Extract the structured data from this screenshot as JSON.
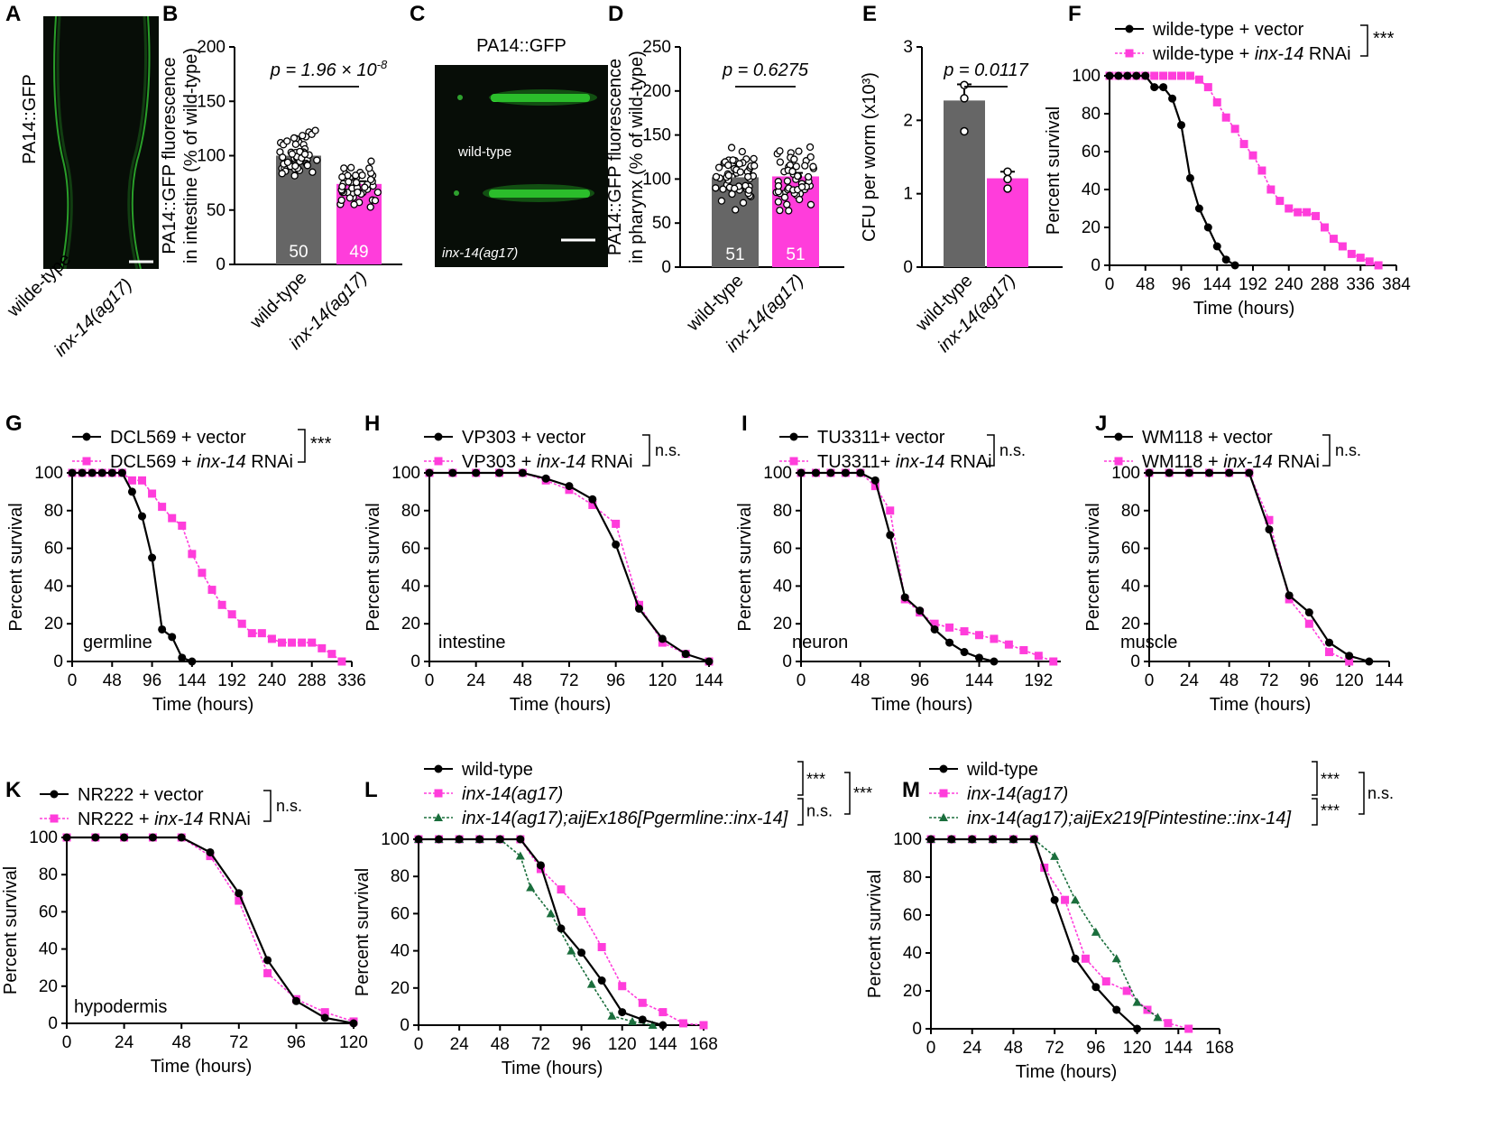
{
  "colors": {
    "black": "#000000",
    "pink": "#ff3ddb",
    "green": "#1a6e3c",
    "grey": "#666666"
  },
  "panels": {
    "A": {
      "label": "A",
      "ylabel": "PA14::GFP",
      "xcats": [
        "wilde-type",
        "inx-14(ag17)"
      ]
    },
    "C": {
      "label": "C",
      "title": "PA14::GFP",
      "img_labels": [
        "wild-type",
        "inx-14(ag17)"
      ]
    }
  },
  "chart_data": [
    {
      "id": "B",
      "type": "bar",
      "categories": [
        "wild-type",
        "inx-14(ag17)"
      ],
      "values": [
        100,
        74
      ],
      "sem": [
        3,
        2.5
      ],
      "n": [
        "50",
        "49"
      ],
      "ylabel_lines": [
        "PA14::GFP fluorescence",
        "in intestine (% of wild-type)"
      ],
      "ylim": [
        0,
        200
      ],
      "yticks": [
        0,
        50,
        100,
        150,
        200
      ],
      "annotation": "p = 1.96 × 10",
      "annotation_sup": "-8"
    },
    {
      "id": "D",
      "type": "bar",
      "categories": [
        "wild-type",
        "inx-14(ag17)"
      ],
      "values": [
        102,
        103
      ],
      "sem": [
        4,
        4
      ],
      "n": [
        "51",
        "51"
      ],
      "ylabel_lines": [
        "PA14::GFP fluorescence",
        "in pharynx (% of wild-type)"
      ],
      "ylim": [
        0,
        250
      ],
      "yticks": [
        0,
        50,
        100,
        150,
        200,
        250
      ],
      "annotation": "p = 0.6275"
    },
    {
      "id": "E",
      "type": "bar",
      "categories": [
        "wild-type",
        "inx-14(ag17)"
      ],
      "values": [
        2.27,
        1.21
      ],
      "sem": [
        0.22,
        0.09
      ],
      "points": [
        [
          2.48,
          2.3,
          1.85
        ],
        [
          1.3,
          1.2,
          1.07
        ]
      ],
      "ylabel": "CFU per worm (x10³)",
      "ylim": [
        0,
        3
      ],
      "yticks": [
        0,
        1,
        2,
        3
      ],
      "annotation": "p = 0.0117"
    },
    {
      "id": "F",
      "type": "line",
      "xlabel": "Time (hours)",
      "ylabel": "Percent survival",
      "xlim": [
        0,
        384
      ],
      "xticks": [
        0,
        48,
        96,
        144,
        192,
        240,
        288,
        336,
        384
      ],
      "ylim": [
        0,
        100
      ],
      "yticks": [
        0,
        20,
        40,
        60,
        80,
        100
      ],
      "series": [
        {
          "name": "wilde-type + vector",
          "style": "black",
          "x": [
            0,
            12,
            24,
            36,
            48,
            60,
            72,
            84,
            96,
            108,
            120,
            132,
            144,
            156,
            168
          ],
          "y": [
            100,
            100,
            100,
            100,
            100,
            94,
            94,
            88,
            74,
            46,
            30,
            20,
            10,
            3,
            0
          ]
        },
        {
          "name": "wilde-type + inx-14 RNAi",
          "style": "pink",
          "x": [
            0,
            12,
            24,
            36,
            48,
            60,
            72,
            84,
            96,
            108,
            120,
            132,
            144,
            156,
            168,
            180,
            192,
            204,
            216,
            228,
            240,
            252,
            264,
            276,
            288,
            300,
            312,
            324,
            336,
            348,
            360
          ],
          "y": [
            100,
            100,
            100,
            100,
            100,
            100,
            100,
            100,
            100,
            100,
            98,
            94,
            86,
            78,
            72,
            64,
            58,
            50,
            40,
            34,
            30,
            28,
            28,
            26,
            20,
            14,
            10,
            6,
            4,
            2,
            0
          ]
        }
      ],
      "stats": [
        {
          "text": "***"
        }
      ]
    },
    {
      "id": "G",
      "type": "line",
      "xlabel": "Time (hours)",
      "ylabel": "Percent survival",
      "tissue": "germline",
      "xlim": [
        0,
        336
      ],
      "xticks": [
        0,
        48,
        96,
        144,
        192,
        240,
        288,
        336
      ],
      "ylim": [
        0,
        100
      ],
      "yticks": [
        0,
        20,
        40,
        60,
        80,
        100
      ],
      "series": [
        {
          "name": "DCL569 + vector",
          "style": "black",
          "x": [
            0,
            12,
            24,
            36,
            48,
            60,
            72,
            84,
            96,
            108,
            120,
            132,
            144
          ],
          "y": [
            100,
            100,
            100,
            100,
            100,
            100,
            90,
            77,
            55,
            17,
            13,
            2,
            0
          ]
        },
        {
          "name": "DCL569 + inx-14 RNAi",
          "style": "pink",
          "x": [
            0,
            12,
            24,
            36,
            48,
            60,
            72,
            84,
            96,
            108,
            120,
            132,
            144,
            156,
            168,
            180,
            192,
            204,
            216,
            228,
            240,
            252,
            264,
            276,
            288,
            300,
            312,
            324
          ],
          "y": [
            100,
            100,
            100,
            100,
            100,
            100,
            96,
            96,
            89,
            82,
            76,
            72,
            57,
            47,
            38,
            30,
            25,
            20,
            15,
            15,
            12,
            10,
            10,
            10,
            10,
            7,
            4,
            0
          ]
        }
      ],
      "stats": [
        {
          "text": "***"
        }
      ]
    },
    {
      "id": "H",
      "type": "line",
      "xlabel": "Time (hours)",
      "ylabel": "Percent survival",
      "tissue": "intestine",
      "xlim": [
        0,
        144
      ],
      "xticks": [
        0,
        24,
        48,
        72,
        96,
        120,
        144
      ],
      "ylim": [
        0,
        100
      ],
      "yticks": [
        0,
        20,
        40,
        60,
        80,
        100
      ],
      "series": [
        {
          "name": "VP303 + vector",
          "style": "black",
          "x": [
            0,
            12,
            24,
            36,
            48,
            60,
            72,
            84,
            96,
            108,
            120,
            132,
            144
          ],
          "y": [
            100,
            100,
            100,
            100,
            100,
            97,
            93,
            86,
            62,
            28,
            12,
            4,
            0
          ]
        },
        {
          "name": "VP303 + inx-14 RNAi",
          "style": "pink",
          "x": [
            0,
            12,
            24,
            36,
            48,
            60,
            72,
            84,
            96,
            108,
            120,
            132,
            144
          ],
          "y": [
            100,
            100,
            100,
            100,
            100,
            96,
            91,
            83,
            73,
            30,
            10,
            4,
            0
          ]
        }
      ],
      "stats": [
        {
          "text": "n.s."
        }
      ]
    },
    {
      "id": "I",
      "type": "line",
      "xlabel": "Time (hours)",
      "ylabel": "Percent survival",
      "tissue": "neuron",
      "xlim": [
        0,
        210
      ],
      "xticks": [
        0,
        48,
        96,
        144,
        192
      ],
      "ylim": [
        0,
        100
      ],
      "yticks": [
        0,
        20,
        40,
        60,
        80,
        100
      ],
      "series": [
        {
          "name": "TU3311+ vector",
          "style": "black",
          "x": [
            0,
            12,
            24,
            36,
            48,
            60,
            72,
            84,
            96,
            108,
            120,
            132,
            144,
            156
          ],
          "y": [
            100,
            100,
            100,
            100,
            100,
            96,
            67,
            34,
            27,
            17,
            10,
            5,
            2,
            0
          ]
        },
        {
          "name": "TU3311+ inx-14 RNAi",
          "style": "pink",
          "x": [
            0,
            12,
            24,
            36,
            48,
            60,
            72,
            84,
            96,
            108,
            120,
            132,
            144,
            156,
            168,
            180,
            192,
            204
          ],
          "y": [
            100,
            100,
            100,
            100,
            100,
            93,
            80,
            33,
            26,
            20,
            18,
            16,
            14,
            12,
            9,
            6,
            3,
            0
          ]
        }
      ],
      "stats": [
        {
          "text": "n.s."
        }
      ]
    },
    {
      "id": "J",
      "type": "line",
      "xlabel": "Time (hours)",
      "ylabel": "Percent survival",
      "tissue": "muscle",
      "xlim": [
        0,
        144
      ],
      "xticks": [
        0,
        24,
        48,
        72,
        96,
        120,
        144
      ],
      "ylim": [
        0,
        100
      ],
      "yticks": [
        0,
        20,
        40,
        60,
        80,
        100
      ],
      "series": [
        {
          "name": "WM118 + vector",
          "style": "black",
          "x": [
            0,
            12,
            24,
            36,
            48,
            60,
            72,
            84,
            96,
            108,
            120,
            132
          ],
          "y": [
            100,
            100,
            100,
            100,
            100,
            100,
            70,
            35,
            26,
            10,
            3,
            0
          ]
        },
        {
          "name": "WM118 + inx-14 RNAi",
          "style": "pink",
          "x": [
            0,
            12,
            24,
            36,
            48,
            60,
            72,
            84,
            96,
            108,
            120
          ],
          "y": [
            100,
            100,
            100,
            100,
            100,
            100,
            75,
            33,
            20,
            5,
            0
          ]
        }
      ],
      "stats": [
        {
          "text": "n.s."
        }
      ]
    },
    {
      "id": "K",
      "type": "line",
      "xlabel": "Time (hours)",
      "ylabel": "Percent survival",
      "tissue": "hypodermis",
      "xlim": [
        0,
        120
      ],
      "xticks": [
        0,
        24,
        48,
        72,
        96,
        120
      ],
      "ylim": [
        0,
        100
      ],
      "yticks": [
        0,
        20,
        40,
        60,
        80,
        100
      ],
      "series": [
        {
          "name": "NR222 + vector",
          "style": "black",
          "x": [
            0,
            12,
            24,
            36,
            48,
            60,
            72,
            84,
            96,
            108,
            120
          ],
          "y": [
            100,
            100,
            100,
            100,
            100,
            92,
            70,
            34,
            12,
            3,
            0
          ]
        },
        {
          "name": "NR222 + inx-14 RNAi",
          "style": "pink",
          "x": [
            0,
            12,
            24,
            36,
            48,
            60,
            72,
            84,
            96,
            108,
            120
          ],
          "y": [
            100,
            100,
            100,
            100,
            100,
            90,
            66,
            27,
            13,
            6,
            1
          ]
        }
      ],
      "stats": [
        {
          "text": "n.s."
        }
      ]
    },
    {
      "id": "L",
      "type": "line",
      "xlabel": "Time (hours)",
      "ylabel": "Percent survival",
      "xlim": [
        0,
        168
      ],
      "xticks": [
        0,
        24,
        48,
        72,
        96,
        120,
        144,
        168
      ],
      "ylim": [
        0,
        100
      ],
      "yticks": [
        0,
        20,
        40,
        60,
        80,
        100
      ],
      "series": [
        {
          "name": "wild-type",
          "style": "black",
          "x": [
            0,
            12,
            24,
            36,
            48,
            60,
            72,
            84,
            96,
            108,
            120,
            132,
            144
          ],
          "y": [
            100,
            100,
            100,
            100,
            100,
            100,
            86,
            52,
            39,
            24,
            7,
            3,
            0
          ]
        },
        {
          "name": "inx-14(ag17)",
          "style": "pink",
          "x": [
            0,
            12,
            24,
            36,
            48,
            60,
            72,
            84,
            96,
            108,
            120,
            132,
            144,
            156,
            168
          ],
          "y": [
            100,
            100,
            100,
            100,
            100,
            100,
            84,
            73,
            61,
            42,
            21,
            12,
            7,
            1,
            0
          ]
        },
        {
          "name": "inx-14(ag17);aijEx186[Pgermline::inx-14]",
          "style": "green",
          "x": [
            0,
            12,
            24,
            36,
            48,
            60,
            66,
            78,
            90,
            102,
            114,
            126,
            138
          ],
          "y": [
            100,
            100,
            100,
            100,
            100,
            91,
            74,
            60,
            40,
            22,
            5,
            2,
            0
          ]
        }
      ],
      "stats": [
        {
          "text": "***"
        },
        {
          "text": "n.s."
        },
        {
          "text": "***"
        }
      ]
    },
    {
      "id": "M",
      "type": "line",
      "xlabel": "Time (hours)",
      "ylabel": "Percent survival",
      "xlim": [
        0,
        168
      ],
      "xticks": [
        0,
        24,
        48,
        72,
        96,
        120,
        144,
        168
      ],
      "ylim": [
        0,
        100
      ],
      "yticks": [
        0,
        20,
        40,
        60,
        80,
        100
      ],
      "series": [
        {
          "name": "wild-type",
          "style": "black",
          "x": [
            0,
            12,
            24,
            36,
            48,
            60,
            72,
            84,
            96,
            108,
            120
          ],
          "y": [
            100,
            100,
            100,
            100,
            100,
            100,
            68,
            37,
            22,
            10,
            0
          ]
        },
        {
          "name": "inx-14(ag17)",
          "style": "pink",
          "x": [
            0,
            12,
            24,
            36,
            48,
            60,
            66,
            78,
            90,
            102,
            114,
            126,
            138,
            150
          ],
          "y": [
            100,
            100,
            100,
            100,
            100,
            100,
            85,
            68,
            37,
            25,
            20,
            10,
            3,
            0
          ]
        },
        {
          "name": "inx-14(ag17);aijEx219[Pintestine::inx-14]",
          "style": "green",
          "x": [
            0,
            12,
            24,
            36,
            48,
            60,
            72,
            84,
            96,
            108,
            120,
            132
          ],
          "y": [
            100,
            100,
            100,
            100,
            100,
            100,
            91,
            68,
            51,
            37,
            14,
            6
          ]
        }
      ],
      "stats": [
        {
          "text": "***"
        },
        {
          "text": "***"
        },
        {
          "text": "n.s."
        }
      ]
    }
  ]
}
